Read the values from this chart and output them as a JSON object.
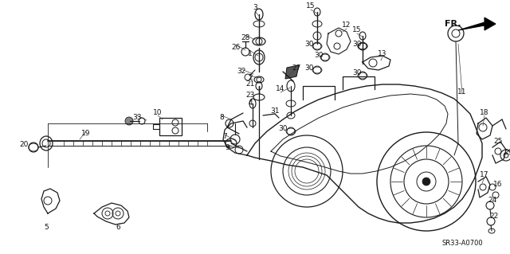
{
  "bg_color": "#ffffff",
  "fig_width": 6.4,
  "fig_height": 3.19,
  "dpi": 100,
  "diagram_code": "SR33-A0700",
  "line_color": "#1a1a1a",
  "text_color": "#111111"
}
